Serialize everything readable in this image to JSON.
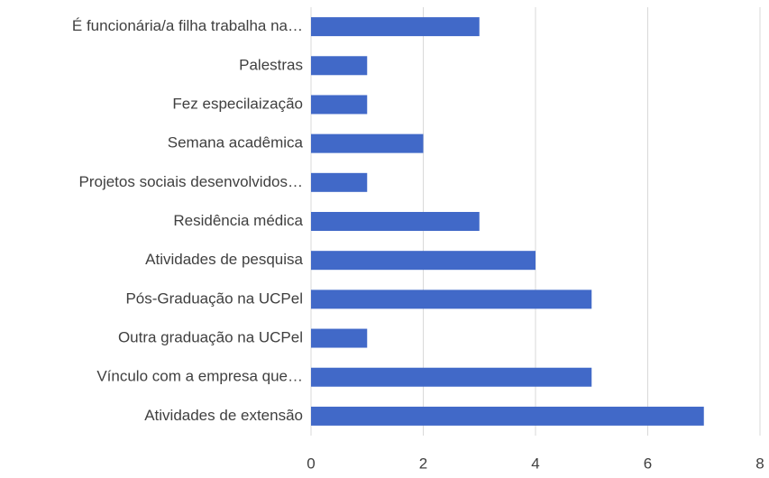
{
  "chart_data": {
    "type": "bar",
    "orientation": "horizontal",
    "categories": [
      "É funcionária/a filha trabalha na…",
      "Palestras",
      "Fez especilaização",
      "Semana acadêmica",
      "Projetos sociais desenvolvidos…",
      "Residência médica",
      "Atividades de pesquisa",
      "Pós-Graduação na UCPel",
      "Outra graduação na UCPel",
      "Vínculo com a empresa que…",
      "Atividades de extensão"
    ],
    "values": [
      3,
      1,
      1,
      2,
      1,
      3,
      4,
      5,
      1,
      5,
      7
    ],
    "color": "#4169c8",
    "xlim": [
      0,
      8
    ],
    "xticks": [
      0,
      2,
      4,
      6,
      8
    ],
    "grid": true
  }
}
